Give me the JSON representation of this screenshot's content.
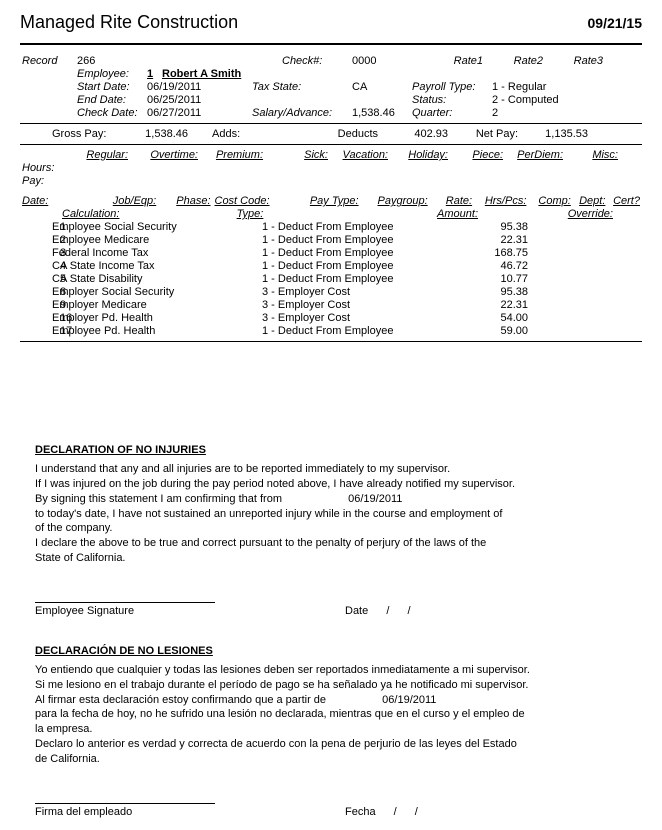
{
  "header": {
    "company": "Managed Rite Construction",
    "date": "09/21/15"
  },
  "record": {
    "label": "Record",
    "number": "266",
    "check_label": "Check#:",
    "check_no": "0000",
    "rate1": "Rate1",
    "rate2": "Rate2",
    "rate3": "Rate3",
    "employee_label": "Employee:",
    "employee_no": "1",
    "employee_name": "Robert A Smith",
    "start_label": "Start Date:",
    "start_date": "06/19/2011",
    "tax_state_label": "Tax State:",
    "tax_state": "CA",
    "payroll_type_label": "Payroll Type:",
    "payroll_type": "1 - Regular",
    "end_label": "End Date:",
    "end_date": "06/25/2011",
    "status_label": "Status:",
    "status": "2 - Computed",
    "check_date_label": "Check Date:",
    "check_date": "06/27/2011",
    "salary_label": "Salary/Advance:",
    "salary": "1,538.46",
    "quarter_label": "Quarter:",
    "quarter": "2"
  },
  "totals": {
    "gross_label": "Gross Pay:",
    "gross": "1,538.46",
    "adds_label": "Adds:",
    "deducts_label": "Deducts",
    "deducts": "402.93",
    "net_label": "Net Pay:",
    "net": "1,135.53"
  },
  "cols": {
    "regular": "Regular:",
    "overtime": "Overtime:",
    "premium": "Premium:",
    "sick": "Sick:",
    "vacation": "Vacation:",
    "holiday": "Holiday:",
    "piece": "Piece:",
    "perdiem": "PerDiem:",
    "misc": "Misc:",
    "hours": "Hours:",
    "pay": "Pay:"
  },
  "dedhdr": {
    "date": "Date:",
    "jobeqp": "Job/Eqp:",
    "phase": "Phase:",
    "costcode": "Cost Code:",
    "paytype": "Pay Type:",
    "paygroup": "Paygroup:",
    "rate": "Rate:",
    "hrspcs": "Hrs/Pcs:",
    "comp": "Comp:",
    "dept": "Dept:",
    "cert": "Cert?",
    "calculation": "Calculation:",
    "type": "Type:",
    "amount": "Amount:",
    "override": "Override:"
  },
  "deductions": [
    {
      "n": "1",
      "calc": "Employee Social Security",
      "type": "1 - Deduct From Employee",
      "amt": "95.38"
    },
    {
      "n": "2",
      "calc": "Employee Medicare",
      "type": "1 - Deduct From Employee",
      "amt": "22.31"
    },
    {
      "n": "3",
      "calc": "Federal Income Tax",
      "type": "1 - Deduct From Employee",
      "amt": "168.75"
    },
    {
      "n": "4",
      "calc": "CA State Income Tax",
      "type": "1 - Deduct From Employee",
      "amt": "46.72"
    },
    {
      "n": "5",
      "calc": "CA State Disability",
      "type": "1 - Deduct From Employee",
      "amt": "10.77"
    },
    {
      "n": "8",
      "calc": "Employer Social Security",
      "type": "3 - Employer Cost",
      "amt": "95.38"
    },
    {
      "n": "9",
      "calc": "Employer Medicare",
      "type": "3 - Employer Cost",
      "amt": "22.31"
    },
    {
      "n": "16",
      "calc": "Employer Pd. Health",
      "type": "3 - Employer Cost",
      "amt": "54.00"
    },
    {
      "n": "17",
      "calc": "Employee Pd. Health",
      "type": "1 - Deduct From Employee",
      "amt": "59.00"
    }
  ],
  "decl_en": {
    "title": "DECLARATION OF NO INJURIES",
    "l1": "I understand that any and all injuries are to be reported immediately to my supervisor.",
    "l2": "If I was injured on the job during the pay period noted above, I have already notified my supervisor.",
    "l3a": "By signing this statement I am confirming  that from",
    "l3b": "06/19/2011",
    "l4": "to today's date, I have not sustained an unreported injury while in the course and employment of",
    "l5": "of the company.",
    "l6": "I declare the above to be true and correct pursuant to the penalty of perjury of the laws of the",
    "l7": "State of California.",
    "sig": "Employee Signature",
    "date": "Date",
    "slash": "/"
  },
  "decl_es": {
    "title": "DECLARACIÓN DE NO LESIONES",
    "l1": "Yo entiendo que cualquier y todas las lesiones deben ser reportados inmediatamente a mi supervisor.",
    "l2": "Si me lesiono en el trabajo durante el período de pago se ha señalado ya he notificado mi supervisor.",
    "l3a": "Al firmar esta declaración estoy confirmando que a partir de",
    "l3b": "06/19/2011",
    "l4": "para la fecha de hoy, no he sufrido una lesión no declarada, mientras que en el curso y el empleo de",
    "l5": "la empresa.",
    "l6": "Declaro lo anterior es verdad y correcta de acuerdo con la pena de perjurio de las leyes del Estado",
    "l7": "de California.",
    "sig": "Firma del empleado",
    "date": "Fecha",
    "slash": "/"
  }
}
